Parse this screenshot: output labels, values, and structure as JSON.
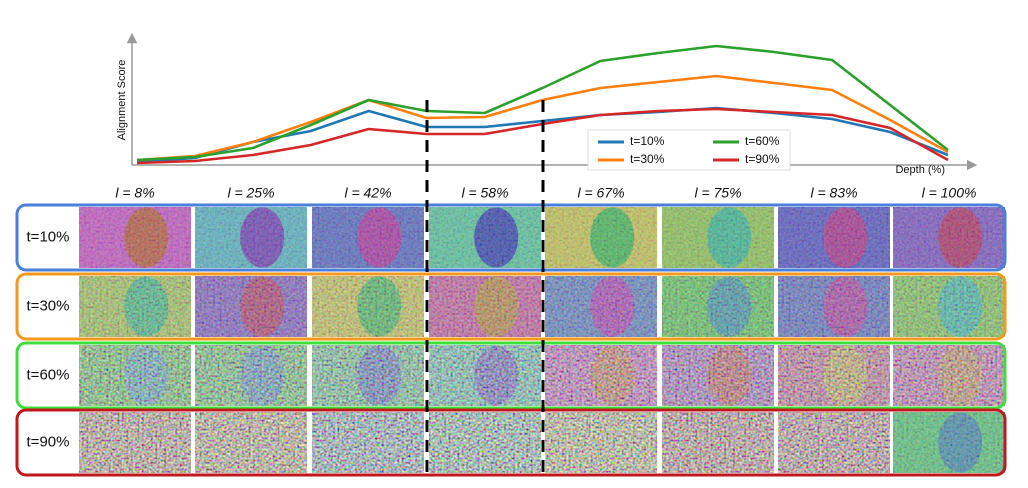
{
  "chart_data": {
    "type": "line",
    "ylabel": "Alignment Score",
    "xlabel": "Depth (%)",
    "categories": [
      null,
      null,
      null,
      null,
      null,
      null,
      null,
      null,
      null,
      null,
      null,
      null,
      null,
      null,
      null
    ],
    "ylim": [
      0,
      127
    ],
    "legend": "lower right",
    "series": [
      {
        "name": "t=10%",
        "color": "#1f77b4",
        "values": [
          3,
          7,
          23,
          34,
          54,
          38,
          38,
          44,
          50,
          53,
          57,
          52,
          46,
          33,
          10
        ]
      },
      {
        "name": "t=30%",
        "color": "#ff7f0e",
        "values": [
          5,
          9,
          23,
          43,
          65,
          47,
          48,
          65,
          77,
          83,
          89,
          82,
          75,
          45,
          13
        ]
      },
      {
        "name": "t=60%",
        "color": "#2ca02c",
        "values": [
          5,
          8,
          17,
          40,
          65,
          54,
          52,
          77,
          104,
          112,
          119,
          113,
          105,
          60,
          15
        ]
      },
      {
        "name": "t=90%",
        "color": "#d62728",
        "values": [
          2,
          4,
          10,
          20,
          36,
          31,
          31,
          41,
          50,
          54,
          56,
          53,
          50,
          37,
          5
        ]
      }
    ]
  },
  "grid": {
    "columns": [
      "l = 8%",
      "l = 25%",
      "l = 42%",
      "l = 58%",
      "l = 67%",
      "l = 75%",
      "l = 83%",
      "l = 100%"
    ],
    "rows": [
      {
        "label": "t=10%",
        "color": "#4a7fdc"
      },
      {
        "label": "t=30%",
        "color": "#f39a1e"
      },
      {
        "label": "t=60%",
        "color": "#3de03a"
      },
      {
        "label": "t=90%",
        "color": "#c0171c"
      }
    ]
  }
}
